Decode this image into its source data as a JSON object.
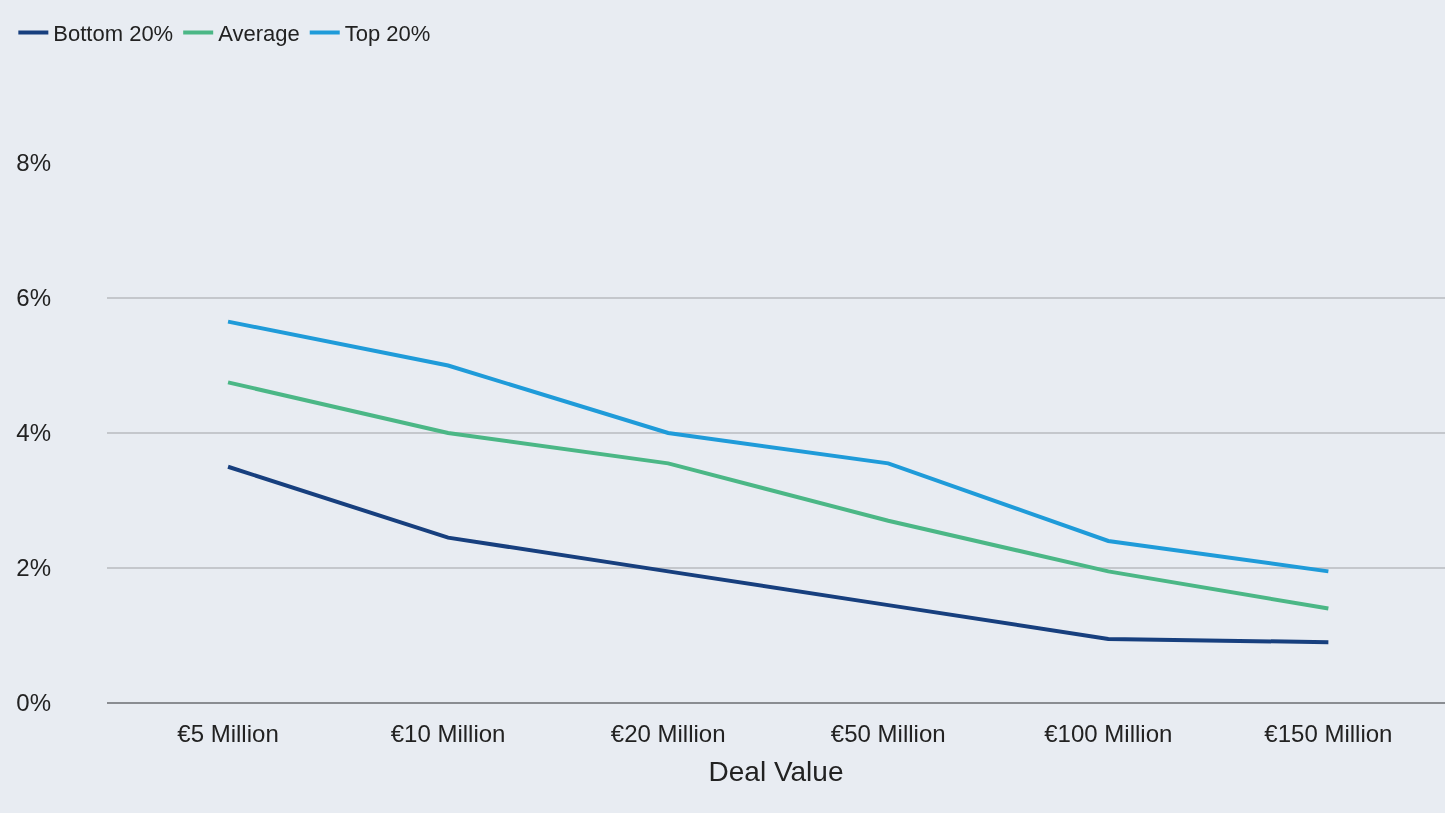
{
  "chart_data": {
    "type": "line",
    "xlabel": "Deal Value",
    "categories": [
      "€5 Million",
      "€10 Million",
      "€20 Million",
      "€50 Million",
      "€100 Million",
      "€150 Million"
    ],
    "series": [
      {
        "name": "Bottom 20%",
        "color": "#173f7e",
        "values": [
          3.5,
          2.45,
          1.95,
          1.45,
          0.95,
          0.9
        ]
      },
      {
        "name": "Average",
        "color": "#4bb786",
        "values": [
          4.75,
          4.0,
          3.55,
          2.7,
          1.95,
          1.4
        ]
      },
      {
        "name": "Top 20%",
        "color": "#1f9bd9",
        "values": [
          5.65,
          5.0,
          4.0,
          3.55,
          2.4,
          1.95
        ]
      }
    ],
    "ylim": [
      0,
      8
    ],
    "yticks": [
      {
        "value": 0,
        "label": "0%"
      },
      {
        "value": 2,
        "label": "2%"
      },
      {
        "value": 4,
        "label": "4%"
      },
      {
        "value": 6,
        "label": "6%"
      },
      {
        "value": 8,
        "label": "8%"
      }
    ],
    "grid": "y",
    "legend": "top left",
    "marker": "none",
    "line_style": "solid"
  }
}
